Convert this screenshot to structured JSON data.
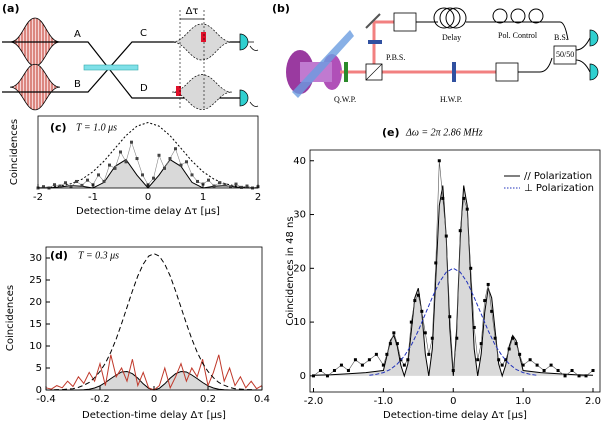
{
  "diagram_a": {
    "label": "(a)",
    "ports": [
      "A",
      "B",
      "C",
      "D"
    ],
    "delay": "Δτ"
  },
  "diagram_b": {
    "label": "(b)",
    "components": [
      "Delay",
      "Pol. Control",
      "B.S.",
      "50/50",
      "P.B.S.",
      "Q.W.P.",
      "H.W.P."
    ]
  },
  "chart_data": [
    {
      "type": "line",
      "panel": "(c)",
      "title": "T = 1.0 μs",
      "xlabel": "Detection-time delay Δτ [μs]",
      "ylabel": "Coincidences",
      "xlim": [
        -2,
        2
      ],
      "xticks": [
        -2,
        -1,
        0,
        1,
        2
      ],
      "ylim": [
        0,
        1.1
      ],
      "series": [
        {
          "color": "#000",
          "dash": "2,2",
          "x": [
            -2,
            -1.8,
            -1.6,
            -1.4,
            -1.2,
            -1,
            -0.8,
            -0.6,
            -0.4,
            -0.2,
            0,
            0.2,
            0.4,
            0.6,
            0.8,
            1,
            1.2,
            1.4,
            1.6,
            1.8,
            2
          ],
          "values": [
            0.004,
            0.011,
            0.029,
            0.066,
            0.135,
            0.249,
            0.411,
            0.607,
            0.8,
            0.946,
            1,
            0.946,
            0.8,
            0.607,
            0.411,
            0.249,
            0.135,
            0.066,
            0.029,
            0.011,
            0.004
          ]
        },
        {
          "color": "#000",
          "fill": "#d9d9d9",
          "x": [
            -2,
            -1.8,
            -1.6,
            -1.4,
            -1.2,
            -1,
            -0.8,
            -0.6,
            -0.4,
            -0.2,
            0,
            0.2,
            0.4,
            0.6,
            0.8,
            1,
            1.2,
            1.4,
            1.6,
            1.8,
            2
          ],
          "values": [
            0,
            0.002,
            0.016,
            0.036,
            0.028,
            0,
            0.085,
            0.33,
            0.434,
            0.196,
            0,
            0.196,
            0.434,
            0.33,
            0.085,
            0,
            0.028,
            0.036,
            0.016,
            0.002,
            0
          ]
        },
        {
          "color": "#888",
          "marker": "#444",
          "x": [
            -2,
            -1.9,
            -1.8,
            -1.7,
            -1.6,
            -1.5,
            -1.4,
            -1.3,
            -1.2,
            -1.1,
            -1,
            -0.9,
            -0.8,
            -0.7,
            -0.6,
            -0.5,
            -0.4,
            -0.3,
            -0.2,
            -0.1,
            0,
            0.1,
            0.2,
            0.3,
            0.4,
            0.5,
            0.6,
            0.7,
            0.8,
            0.9,
            1,
            1.1,
            1.2,
            1.3,
            1.4,
            1.5,
            1.6,
            1.7,
            1.8,
            1.9,
            2
          ],
          "values": [
            0,
            0.02,
            0,
            0.05,
            0.03,
            0.08,
            0.02,
            0.1,
            0.04,
            0.12,
            0.05,
            0.2,
            0.1,
            0.35,
            0.3,
            0.55,
            0.4,
            0.7,
            0.45,
            0.2,
            0.05,
            0.15,
            0.5,
            0.3,
            0.45,
            0.6,
            0.35,
            0.4,
            0.2,
            0.1,
            0.06,
            0.12,
            0.03,
            0.08,
            0.05,
            0.02,
            0.06,
            0.01,
            0.03,
            0,
            0.02
          ]
        }
      ]
    },
    {
      "type": "line",
      "panel": "(d)",
      "title": "T = 0.3 μs",
      "xlabel": "Detection-time delay Δτ [μs]",
      "ylabel": "Coincidences",
      "xlim": [
        -0.4,
        0.4
      ],
      "xticks": [
        -0.4,
        -0.2,
        0,
        0.2,
        0.4
      ],
      "ylim": [
        0,
        32.5
      ],
      "yticks": [
        0,
        5,
        10,
        15,
        20,
        25,
        30
      ],
      "x": [
        -0.4,
        -0.38,
        -0.36,
        -0.34,
        -0.32,
        -0.3,
        -0.28,
        -0.26,
        -0.24,
        -0.22,
        -0.2,
        -0.18,
        -0.16,
        -0.14,
        -0.12,
        -0.1,
        -0.08,
        -0.06,
        -0.04,
        -0.02,
        0,
        0.02,
        0.04,
        0.06,
        0.08,
        0.1,
        0.12,
        0.14,
        0.16,
        0.18,
        0.2,
        0.22,
        0.24,
        0.26,
        0.28,
        0.3,
        0.32,
        0.34,
        0.36,
        0.38,
        0.4
      ],
      "series": [
        {
          "color": "#000",
          "fill": "#d9d9d9",
          "values": [
            0,
            0,
            0,
            0,
            0,
            0,
            0,
            0.05,
            0.18,
            0.46,
            0.95,
            1.7,
            2.6,
            3.4,
            4.1,
            4.2,
            3.7,
            2.7,
            1.4,
            0.39,
            0,
            0.39,
            1.4,
            2.7,
            3.7,
            4.2,
            4.1,
            3.4,
            2.6,
            1.7,
            0.95,
            0.46,
            0.18,
            0.05,
            0,
            0,
            0,
            0,
            0,
            0,
            0
          ]
        },
        {
          "color": "#c0392b",
          "values": [
            0.5,
            0.2,
            1,
            0.5,
            2,
            0.8,
            3,
            1.5,
            4,
            2,
            6,
            1,
            8,
            3,
            5,
            2,
            7,
            1,
            4,
            0.5,
            0,
            1,
            5,
            0.5,
            3,
            6,
            2,
            5,
            3,
            7,
            1,
            4,
            8,
            2,
            5,
            1,
            3,
            0.5,
            2,
            0.3,
            1
          ]
        },
        {
          "color": "#000",
          "dash": "5,3",
          "values": [
            0,
            0,
            0.1,
            0.1,
            0.2,
            0.3,
            0.6,
            1.1,
            1.7,
            2.8,
            4.2,
            6.1,
            8.6,
            11.6,
            15.1,
            18.8,
            22.5,
            25.9,
            28.6,
            30.4,
            31,
            30.4,
            28.6,
            25.9,
            22.5,
            18.8,
            15.1,
            11.6,
            8.6,
            6.1,
            4.2,
            2.8,
            1.7,
            1.1,
            0.6,
            0.3,
            0.2,
            0.1,
            0.1,
            0,
            0
          ]
        }
      ]
    },
    {
      "type": "line",
      "panel": "(e)",
      "title": "Δω = 2π 2.86 MHz",
      "xlabel": "Detection-time delay Δτ [μs]",
      "ylabel": "Coincidences in 48 ns",
      "xlim": [
        -2.05,
        2.1
      ],
      "xticks": [
        {
          "value": -2,
          "label": "-2.0"
        },
        {
          "value": -1,
          "label": "-1.0"
        },
        0,
        {
          "value": 1,
          "label": "1.0"
        },
        {
          "value": 2,
          "label": "2.0"
        }
      ],
      "ylim": [
        -3,
        42
      ],
      "yticks": [
        0,
        10,
        20,
        30,
        40
      ],
      "legend": "upper right",
      "series": [
        {
          "name": "// Polarization",
          "color": "#000",
          "fill": "#d9d9d9",
          "x": [
            -2,
            -1.75,
            -1.5,
            -1.25,
            -1,
            -0.95,
            -0.9,
            -0.85,
            -0.8,
            -0.75,
            -0.7,
            -0.65,
            -0.6,
            -0.55,
            -0.5,
            -0.45,
            -0.4,
            -0.35,
            -0.3,
            -0.25,
            -0.2,
            -0.15,
            -0.1,
            -0.05,
            0,
            0.05,
            0.1,
            0.15,
            0.2,
            0.25,
            0.3,
            0.35,
            0.4,
            0.45,
            0.5,
            0.55,
            0.6,
            0.65,
            0.7,
            0.75,
            0.8,
            0.85,
            0.9,
            0.95,
            1,
            1.25,
            1.5,
            1.75,
            2
          ],
          "values": [
            0.1,
            0.2,
            0.4,
            0.6,
            1.0,
            3.7,
            6.6,
            7.5,
            5.5,
            2.0,
            0,
            2.2,
            8.3,
            14.5,
            16.3,
            11.8,
            4.1,
            0,
            5.0,
            18.2,
            31.7,
            35.4,
            25.5,
            8.8,
            0,
            8.8,
            25.5,
            35.4,
            31.7,
            18.2,
            5.0,
            0,
            4.1,
            11.8,
            16.3,
            14.5,
            8.3,
            2.2,
            0,
            2.0,
            5.5,
            7.5,
            6.6,
            3.7,
            1.0,
            0.6,
            0.4,
            0.2,
            0.1
          ]
        },
        {
          "color": "#555",
          "marker": "#000",
          "x": [
            -2,
            -1.9,
            -1.8,
            -1.7,
            -1.6,
            -1.5,
            -1.4,
            -1.3,
            -1.2,
            -1.1,
            -1,
            -0.95,
            -0.9,
            -0.85,
            -0.8,
            -0.75,
            -0.7,
            -0.65,
            -0.6,
            -0.55,
            -0.5,
            -0.45,
            -0.4,
            -0.35,
            -0.3,
            -0.25,
            -0.2,
            -0.15,
            -0.1,
            -0.05,
            0,
            0.05,
            0.1,
            0.15,
            0.2,
            0.25,
            0.3,
            0.35,
            0.4,
            0.45,
            0.5,
            0.55,
            0.6,
            0.65,
            0.7,
            0.75,
            0.8,
            0.85,
            0.9,
            0.95,
            1,
            1.1,
            1.2,
            1.3,
            1.4,
            1.5,
            1.6,
            1.7,
            1.8,
            1.9,
            2
          ],
          "values": [
            0,
            1,
            0,
            1,
            2,
            1,
            3,
            2,
            3,
            4,
            2,
            4,
            6,
            8,
            6,
            3,
            2,
            3,
            10,
            14,
            15,
            12,
            8,
            4,
            7,
            21,
            40,
            33,
            26,
            11,
            1,
            7,
            27,
            33,
            31,
            20,
            9,
            3,
            6,
            14,
            17,
            12,
            7,
            3,
            2,
            3,
            5,
            7,
            6,
            4,
            2,
            3,
            2,
            1,
            2,
            1,
            0,
            1,
            0,
            0,
            1
          ]
        },
        {
          "name": "⊥ Polarization",
          "color": "#2233bb",
          "dash": "4,2",
          "x": [
            -1.2,
            -1.1,
            -1,
            -0.9,
            -0.8,
            -0.7,
            -0.6,
            -0.5,
            -0.4,
            -0.3,
            -0.2,
            -0.1,
            0,
            0.1,
            0.2,
            0.3,
            0.4,
            0.5,
            0.6,
            0.7,
            0.8,
            0.9,
            1,
            1.1,
            1.2
          ],
          "values": [
            0.1,
            0.3,
            0.6,
            1.2,
            2.2,
            3.7,
            5.7,
            8.4,
            11.5,
            14.6,
            17.4,
            19.3,
            20,
            19.3,
            17.4,
            14.6,
            11.5,
            8.4,
            5.7,
            3.7,
            2.2,
            1.2,
            0.6,
            0.3,
            0.1
          ]
        }
      ]
    }
  ]
}
